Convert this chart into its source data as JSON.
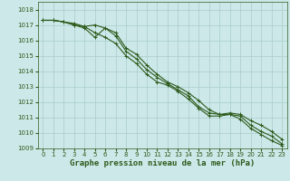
{
  "title": "Graphe pression niveau de la mer (hPa)",
  "x": [
    0,
    1,
    2,
    3,
    4,
    5,
    6,
    7,
    8,
    9,
    10,
    11,
    12,
    13,
    14,
    15,
    16,
    17,
    18,
    19,
    20,
    21,
    22,
    23
  ],
  "series": [
    [
      1017.3,
      1017.3,
      1017.2,
      1017.1,
      1016.9,
      1016.5,
      1016.2,
      1015.8,
      1015.0,
      1014.5,
      1013.8,
      1013.3,
      1013.1,
      1012.7,
      1012.2,
      1011.6,
      1011.1,
      1011.1,
      1011.2,
      1010.9,
      1010.3,
      1009.9,
      1009.5,
      1009.2
    ],
    [
      1017.3,
      1017.3,
      1017.2,
      1017.0,
      1016.8,
      1016.2,
      1016.8,
      1016.3,
      1015.3,
      1014.8,
      1014.1,
      1013.6,
      1013.2,
      1012.8,
      1012.4,
      1011.7,
      1011.3,
      1011.2,
      1011.2,
      1011.1,
      1010.5,
      1010.1,
      1009.8,
      1009.3
    ],
    [
      1017.3,
      1017.3,
      1017.2,
      1017.0,
      1016.9,
      1017.0,
      1016.8,
      1016.5,
      1015.5,
      1015.1,
      1014.4,
      1013.8,
      1013.3,
      1013.0,
      1012.6,
      1012.1,
      1011.5,
      1011.2,
      1011.3,
      1011.2,
      1010.8,
      1010.5,
      1010.1,
      1009.6
    ]
  ],
  "ylim": [
    1009,
    1018.5
  ],
  "yticks": [
    1009,
    1010,
    1011,
    1012,
    1013,
    1014,
    1015,
    1016,
    1017,
    1018
  ],
  "xticks": [
    0,
    1,
    2,
    3,
    4,
    5,
    6,
    7,
    8,
    9,
    10,
    11,
    12,
    13,
    14,
    15,
    16,
    17,
    18,
    19,
    20,
    21,
    22,
    23
  ],
  "bg_color": "#cce8e8",
  "grid_color": "#aacccc",
  "line_color": "#2d5a1b",
  "marker": "+",
  "marker_size": 3,
  "line_width": 0.8,
  "title_fontsize": 6.5,
  "tick_fontsize": 5.0
}
